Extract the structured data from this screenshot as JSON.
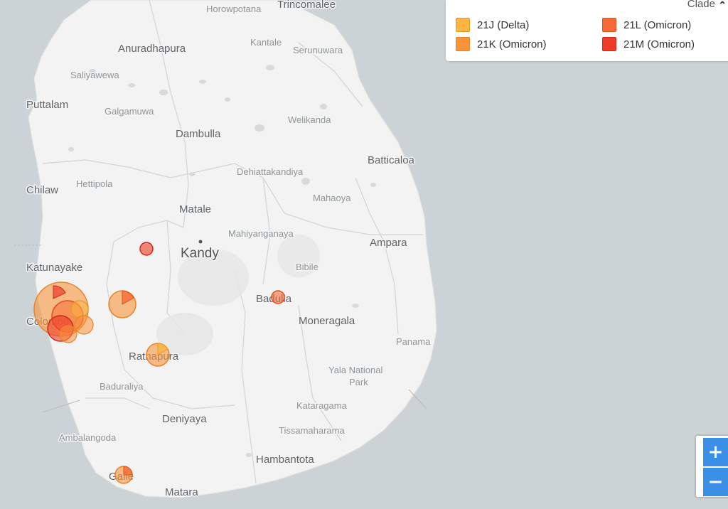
{
  "legend": {
    "title": "Clade",
    "toggle_icon": "chevron-up-icon",
    "items": [
      {
        "label": "21J (Delta)",
        "color": "#fbb540"
      },
      {
        "label": "21L (Omicron)",
        "color": "#f66b35"
      },
      {
        "label": "21K (Omicron)",
        "color": "#f9943a"
      },
      {
        "label": "21M (Omicron)",
        "color": "#ee3a27"
      }
    ]
  },
  "zoom": {
    "in_label": "+",
    "out_label": "−"
  },
  "places": {
    "horowpotana": "Horowpotana",
    "trincomalee": "Trincomalee",
    "anuradhapura": "Anuradhapura",
    "kantale": "Kantale",
    "serunuwara": "Serunuwara",
    "saliyawewa": "Saliyawewa",
    "puttalam": "Puttalam",
    "galgamuwa": "Galgamuwa",
    "welikanda": "Welikanda",
    "dambulla": "Dambulla",
    "batticaloa": "Batticaloa",
    "dehiattakandiya": "Dehiattakandiya",
    "chilaw": "Chilaw",
    "hettipola": "Hettipola",
    "mahaoya": "Mahaoya",
    "matale": "Matale",
    "mahiyanganaya": "Mahiyanganaya",
    "ampara": "Ampara",
    "kandy": "Kandy",
    "katunayake": "Katunayake",
    "bibile": "Bibile",
    "badulla": "Badulla",
    "colombo": "Colombo",
    "moneragala": "Moneragala",
    "panama": "Panama",
    "ratnapura": "Ratnapura",
    "yala_1": "Yala National",
    "yala_2": "Park",
    "baduraliya": "Baduraliya",
    "kataragama": "Kataragama",
    "deniyaya": "Deniyaya",
    "tissamaharama": "Tissamaharama",
    "ambalangoda": "Ambalangoda",
    "hambantota": "Hambantota",
    "galle": "Galle",
    "matara": "Matara"
  }
}
